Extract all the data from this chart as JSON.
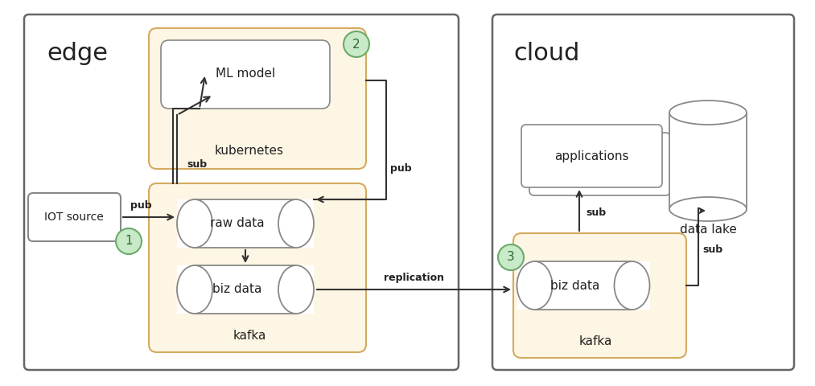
{
  "fig_width": 10.13,
  "fig_height": 4.8,
  "bg_color": "#ffffff",
  "outer_box_edge": "#666666",
  "kafka_box_color": "#fef6e4",
  "kafka_box_edge": "#d4aa60",
  "kube_box_color": "#fef6e4",
  "kube_box_edge": "#d4aa60",
  "white_box_edge": "#888888",
  "iot_box_edge": "#888888",
  "circle_color": "#c8eac8",
  "circle_edge": "#6aaa6a",
  "arrow_color": "#333333",
  "text_color": "#222222",
  "cyl_face": "#ffffff",
  "cyl_edge": "#888888",
  "label_edge": "edge",
  "label_cloud": "cloud",
  "label_kafka1": "kafka",
  "label_kafka2": "kafka",
  "label_kubernetes": "kubernetes",
  "label_ml": "ML model",
  "label_rawdata": "raw data",
  "label_bizdata1": "biz data",
  "label_bizdata2": "biz data",
  "label_iot": "IOT source",
  "label_applications": "applications",
  "label_datalake": "data lake",
  "label_pub1": "pub",
  "label_pub2": "pub",
  "label_sub1": "sub",
  "label_sub2": "sub",
  "label_sub3": "sub",
  "label_replication": "replication",
  "circle1": "1",
  "circle2": "2",
  "circle3": "3"
}
